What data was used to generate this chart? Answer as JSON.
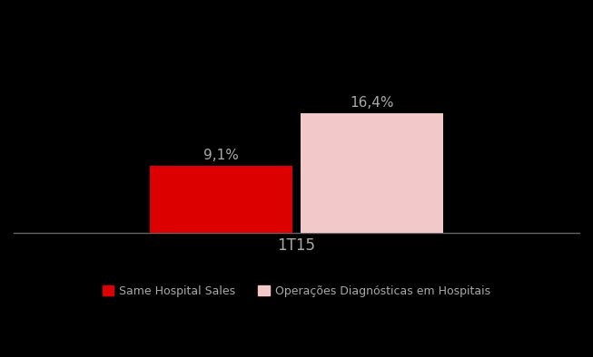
{
  "categories": [
    "1T15"
  ],
  "series": [
    {
      "label": "Same Hospital Sales",
      "values": [
        9.1
      ],
      "color": "#dd0000",
      "legend_color": "#dd0000"
    },
    {
      "label": "Operações Diagnósticas em Hospitais",
      "values": [
        16.4
      ],
      "color": "#f2c8c8",
      "legend_color": "#f2c8c8"
    }
  ],
  "bar_labels": [
    "9,1%",
    "16,4%"
  ],
  "xlabel": "1T15",
  "ylim": [
    0,
    30
  ],
  "background_color": "#000000",
  "text_color": "#aaaaaa",
  "bar_width": 0.38,
  "bar_gap": 0.02,
  "figsize": [
    6.53,
    3.94
  ],
  "dpi": 100,
  "legend_fontsize": 9,
  "label_fontsize": 11,
  "xlabel_fontsize": 12
}
